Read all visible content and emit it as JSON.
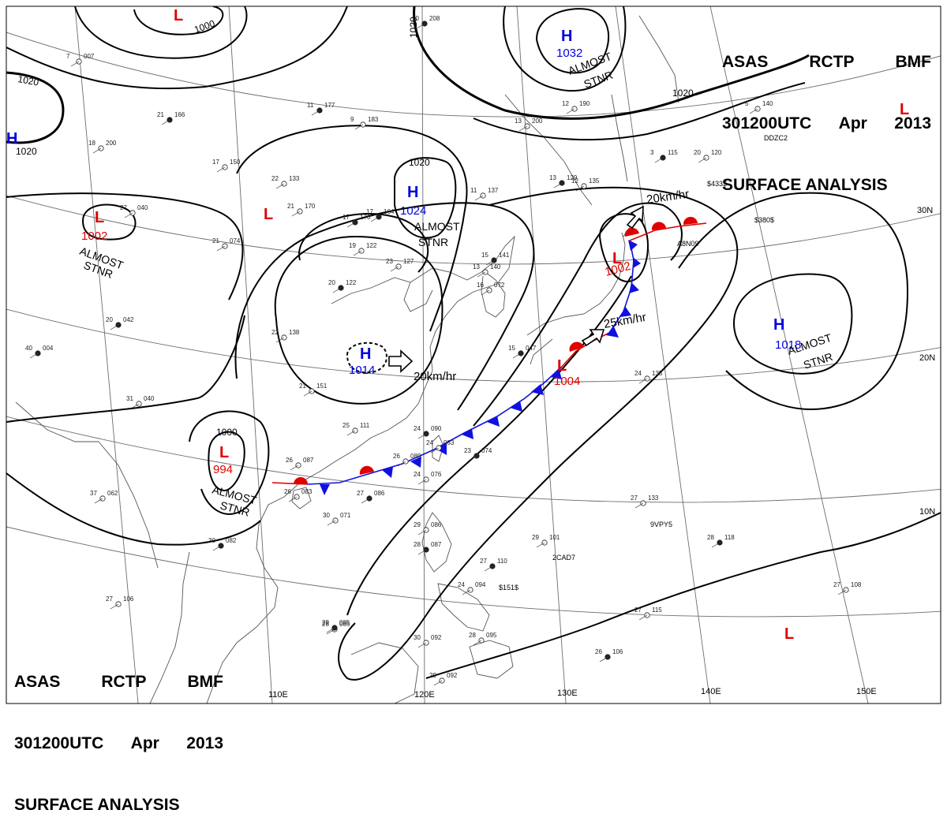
{
  "header": {
    "agency": "ASAS",
    "station": "RCTP",
    "product_code": "BMF",
    "valid_time": "301200UTC",
    "month": "Apr",
    "year": "2013",
    "title": "SURFACE ANALYSIS"
  },
  "colors": {
    "low_symbol": "#e00000",
    "high_symbol": "#0000dd",
    "cold_front": "#1010e0",
    "warm_front": "#e00000",
    "isobar": "#000000",
    "coastline": "#555555",
    "graticule": "#6d6d6d"
  },
  "longitude_labels": [
    "110E",
    "120E",
    "130E",
    "140E",
    "150E"
  ],
  "latitude_labels": [
    "30N",
    "20N",
    "10N"
  ],
  "isobar_labels": [
    "1000",
    "1020",
    "1020",
    "1020",
    "1020",
    "1020",
    "1000"
  ],
  "pressure_systems": [
    {
      "type": "L",
      "pressure": "1002",
      "note": "ALMOST STNR"
    },
    {
      "type": "L",
      "pressure": "994",
      "note": "ALMOST STNR"
    },
    {
      "type": "L",
      "pressure": "1002",
      "note": ""
    },
    {
      "type": "L",
      "pressure": "1004",
      "note": ""
    },
    {
      "type": "H",
      "pressure": "1024",
      "note": "ALMOST STNR"
    },
    {
      "type": "H",
      "pressure": "1014",
      "note": ""
    },
    {
      "type": "H",
      "pressure": "1032",
      "note": "ALMOST STNR"
    },
    {
      "type": "H",
      "pressure": "1018",
      "note": "ALMOST STNR"
    },
    {
      "type": "H",
      "pressure": "",
      "note": ""
    },
    {
      "type": "L",
      "pressure": "",
      "note": ""
    },
    {
      "type": "L",
      "pressure": "",
      "note": ""
    },
    {
      "type": "L",
      "pressure": "",
      "note": ""
    },
    {
      "type": "L",
      "pressure": "",
      "note": ""
    }
  ],
  "motion_labels": [
    "20km/hr",
    "20km/hr",
    "25km/hr"
  ],
  "station_plots": [
    [
      "21",
      "166"
    ],
    [
      "17",
      "150"
    ],
    [
      "22",
      "133"
    ],
    [
      "11",
      "177"
    ],
    [
      "9",
      "183"
    ],
    [
      "21",
      "170"
    ],
    [
      "17",
      "176"
    ],
    [
      "21",
      "074"
    ],
    [
      "19",
      "122"
    ],
    [
      "20",
      "122"
    ],
    [
      "22",
      "138"
    ],
    [
      "21",
      "151"
    ],
    [
      "17",
      "164"
    ],
    [
      "23",
      "127"
    ],
    [
      "11",
      "137"
    ],
    [
      "15",
      "141"
    ],
    [
      "13",
      "140"
    ],
    [
      "16",
      "072"
    ],
    [
      "15",
      "047"
    ],
    [
      "26",
      "087"
    ],
    [
      "25",
      "111"
    ],
    [
      "24",
      "090"
    ],
    [
      "26",
      "089"
    ],
    [
      "24",
      "076"
    ],
    [
      "27",
      "086"
    ],
    [
      "26",
      "083"
    ],
    [
      "24",
      "083"
    ],
    [
      "23",
      "074"
    ],
    [
      "26",
      "085"
    ],
    [
      "24",
      "094"
    ],
    [
      "27",
      "110"
    ],
    [
      "29",
      "101"
    ],
    [
      "27",
      "133"
    ],
    [
      "28",
      "118"
    ],
    [
      "27",
      "108"
    ],
    [
      "27",
      "115"
    ],
    [
      "26",
      "106"
    ],
    [
      "29",
      "092"
    ],
    [
      "28",
      "095"
    ],
    [
      "30",
      "082"
    ],
    [
      "30",
      "071"
    ],
    [
      "27",
      "106"
    ],
    [
      "29",
      "085"
    ],
    [
      "30",
      "092"
    ],
    [
      "29",
      "086"
    ],
    [
      "28",
      "087"
    ],
    [
      "24",
      "135"
    ],
    [
      "20",
      "120"
    ],
    [
      "3",
      "115"
    ],
    [
      "5",
      "140"
    ],
    [
      "13",
      "200"
    ],
    [
      "10",
      "208"
    ],
    [
      "18",
      "200"
    ],
    [
      "12",
      "190"
    ],
    [
      "13",
      "129"
    ],
    [
      "12",
      "135"
    ],
    [
      "27",
      "040"
    ],
    [
      "40",
      "004"
    ],
    [
      "31",
      "040"
    ],
    [
      "37",
      "062"
    ],
    [
      "20",
      "042"
    ],
    [
      "7",
      "007"
    ]
  ],
  "ship_callsigns": [
    "DDZC2",
    "A8N09",
    "$433$",
    "$380$",
    "9VPY5",
    "2CAD7",
    "$151$"
  ]
}
